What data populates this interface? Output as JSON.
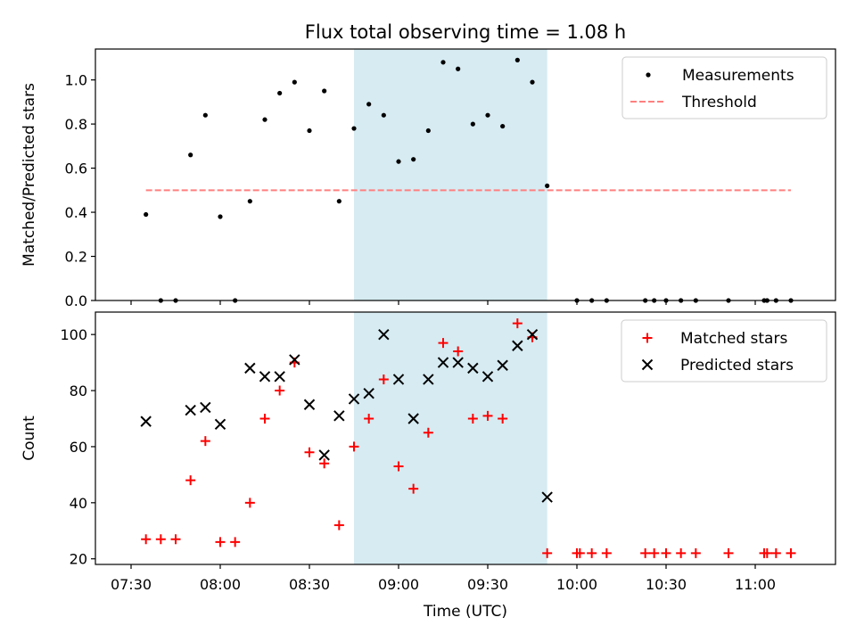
{
  "chart_data": {
    "title": "Flux total observing time = 1.08 h",
    "type": "scatter",
    "shared_x": {
      "label": "Time (UTC)",
      "range": [
        "07:18",
        "11:27"
      ],
      "ticks": [
        "07:30",
        "08:00",
        "08:30",
        "09:00",
        "09:30",
        "10:00",
        "10:30",
        "11:00"
      ]
    },
    "highlight_span": {
      "start": "08:45",
      "end": "09:50",
      "color": "#add8e6"
    },
    "panels": [
      {
        "name": "top",
        "ylabel": "Matched/Predicted stars",
        "ylim": [
          0,
          1.14
        ],
        "yticks": [
          "0.0",
          "0.2",
          "0.4",
          "0.6",
          "0.8",
          "1.0"
        ],
        "series": [
          {
            "name": "Measurements",
            "kind": "dot",
            "color": "#000000",
            "points": [
              [
                "07:35",
                0.39
              ],
              [
                "07:40",
                0.0
              ],
              [
                "07:45",
                0.0
              ],
              [
                "07:50",
                0.66
              ],
              [
                "07:55",
                0.84
              ],
              [
                "08:00",
                0.38
              ],
              [
                "08:05",
                0.0
              ],
              [
                "08:10",
                0.45
              ],
              [
                "08:15",
                0.82
              ],
              [
                "08:20",
                0.94
              ],
              [
                "08:25",
                0.99
              ],
              [
                "08:30",
                0.77
              ],
              [
                "08:35",
                0.95
              ],
              [
                "08:40",
                0.45
              ],
              [
                "08:45",
                0.78
              ],
              [
                "08:50",
                0.89
              ],
              [
                "08:55",
                0.84
              ],
              [
                "09:00",
                0.63
              ],
              [
                "09:05",
                0.64
              ],
              [
                "09:10",
                0.77
              ],
              [
                "09:15",
                1.08
              ],
              [
                "09:20",
                1.05
              ],
              [
                "09:25",
                0.8
              ],
              [
                "09:30",
                0.84
              ],
              [
                "09:35",
                0.79
              ],
              [
                "09:40",
                1.09
              ],
              [
                "09:45",
                0.99
              ],
              [
                "09:50",
                0.52
              ],
              [
                "10:00",
                0.0
              ],
              [
                "10:05",
                0.0
              ],
              [
                "10:10",
                0.0
              ],
              [
                "10:23",
                0.0
              ],
              [
                "10:26",
                0.0
              ],
              [
                "10:30",
                0.0
              ],
              [
                "10:35",
                0.0
              ],
              [
                "10:40",
                0.0
              ],
              [
                "10:51",
                0.0
              ],
              [
                "11:03",
                0.0
              ],
              [
                "11:04",
                0.0
              ],
              [
                "11:07",
                0.0
              ],
              [
                "11:12",
                0.0
              ]
            ]
          },
          {
            "name": "Threshold",
            "kind": "dashed-line",
            "color": "#ff7f7f",
            "value": 0.5,
            "x_range": [
              "07:35",
              "11:12"
            ]
          }
        ],
        "legend_position": "top-right"
      },
      {
        "name": "bottom",
        "ylabel": "Count",
        "ylim": [
          18,
          108
        ],
        "yticks": [
          "20",
          "40",
          "60",
          "80",
          "100"
        ],
        "series": [
          {
            "name": "Matched stars",
            "kind": "plus",
            "color": "#ff0000",
            "points": [
              [
                "07:35",
                27
              ],
              [
                "07:40",
                27
              ],
              [
                "07:45",
                27
              ],
              [
                "07:50",
                48
              ],
              [
                "07:55",
                62
              ],
              [
                "08:00",
                26
              ],
              [
                "08:05",
                26
              ],
              [
                "08:10",
                40
              ],
              [
                "08:15",
                70
              ],
              [
                "08:20",
                80
              ],
              [
                "08:25",
                90
              ],
              [
                "08:30",
                58
              ],
              [
                "08:35",
                54
              ],
              [
                "08:40",
                32
              ],
              [
                "08:45",
                60
              ],
              [
                "08:50",
                70
              ],
              [
                "08:55",
                84
              ],
              [
                "09:00",
                53
              ],
              [
                "09:05",
                45
              ],
              [
                "09:10",
                65
              ],
              [
                "09:15",
                97
              ],
              [
                "09:20",
                94
              ],
              [
                "09:25",
                70
              ],
              [
                "09:30",
                71
              ],
              [
                "09:35",
                70
              ],
              [
                "09:40",
                104
              ],
              [
                "09:45",
                99
              ],
              [
                "09:50",
                22
              ],
              [
                "10:00",
                22
              ],
              [
                "10:01",
                22
              ],
              [
                "10:05",
                22
              ],
              [
                "10:10",
                22
              ],
              [
                "10:23",
                22
              ],
              [
                "10:26",
                22
              ],
              [
                "10:30",
                22
              ],
              [
                "10:35",
                22
              ],
              [
                "10:40",
                22
              ],
              [
                "10:51",
                22
              ],
              [
                "11:03",
                22
              ],
              [
                "11:04",
                22
              ],
              [
                "11:07",
                22
              ],
              [
                "11:12",
                22
              ]
            ]
          },
          {
            "name": "Predicted stars",
            "kind": "x",
            "color": "#000000",
            "points": [
              [
                "07:35",
                69
              ],
              [
                "07:50",
                73
              ],
              [
                "07:55",
                74
              ],
              [
                "08:00",
                68
              ],
              [
                "08:10",
                88
              ],
              [
                "08:15",
                85
              ],
              [
                "08:20",
                85
              ],
              [
                "08:25",
                91
              ],
              [
                "08:30",
                75
              ],
              [
                "08:35",
                57
              ],
              [
                "08:40",
                71
              ],
              [
                "08:45",
                77
              ],
              [
                "08:50",
                79
              ],
              [
                "08:55",
                100
              ],
              [
                "09:00",
                84
              ],
              [
                "09:05",
                70
              ],
              [
                "09:10",
                84
              ],
              [
                "09:15",
                90
              ],
              [
                "09:20",
                90
              ],
              [
                "09:25",
                88
              ],
              [
                "09:30",
                85
              ],
              [
                "09:35",
                89
              ],
              [
                "09:40",
                96
              ],
              [
                "09:45",
                100
              ],
              [
                "09:50",
                42
              ]
            ]
          }
        ],
        "legend_position": "top-right"
      }
    ]
  }
}
